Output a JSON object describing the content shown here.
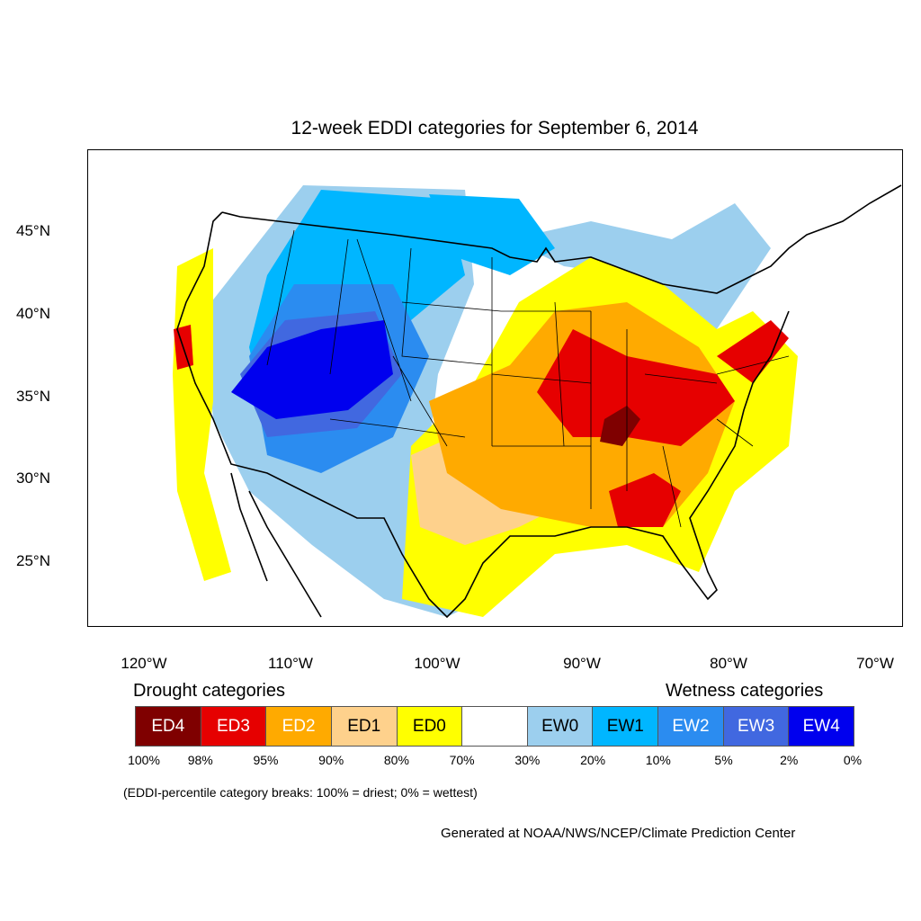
{
  "title": "12-week EDDI categories for September 6, 2014",
  "lat_labels": [
    "45°N",
    "40°N",
    "35°N",
    "30°N",
    "25°N"
  ],
  "lon_labels": [
    "120°W",
    "110°W",
    "100°W",
    "90°W",
    "80°W",
    "70°W"
  ],
  "drought_caption": "Drought categories",
  "wetness_caption": "Wetness categories",
  "categories": [
    {
      "label": "ED4",
      "color": "#7f0000",
      "text_color": "#ffffff"
    },
    {
      "label": "ED3",
      "color": "#e60000",
      "text_color": "#ffffff"
    },
    {
      "label": "ED2",
      "color": "#ffaa00",
      "text_color": "#ffffff"
    },
    {
      "label": "ED1",
      "color": "#fed18c",
      "text_color": "#000000"
    },
    {
      "label": "ED0",
      "color": "#ffff00",
      "text_color": "#000000"
    },
    {
      "label": "",
      "color": "#ffffff",
      "text_color": "#000000"
    },
    {
      "label": "EW0",
      "color": "#9ccfee",
      "text_color": "#000000"
    },
    {
      "label": "EW1",
      "color": "#00b6ff",
      "text_color": "#000000"
    },
    {
      "label": "EW2",
      "color": "#2b8cf0",
      "text_color": "#ffffff"
    },
    {
      "label": "EW3",
      "color": "#4168e0",
      "text_color": "#ffffff"
    },
    {
      "label": "EW4",
      "color": "#0000ee",
      "text_color": "#ffffff"
    }
  ],
  "percent_breaks": [
    "100%",
    "98%",
    "95%",
    "90%",
    "80%",
    "70%",
    "30%",
    "20%",
    "10%",
    "5%",
    "2%",
    "0%"
  ],
  "note": "(EDDI-percentile category breaks: 100% = driest; 0% = wettest)",
  "credit": "Generated at NOAA/NWS/NCEP/Climate Prediction Center"
}
